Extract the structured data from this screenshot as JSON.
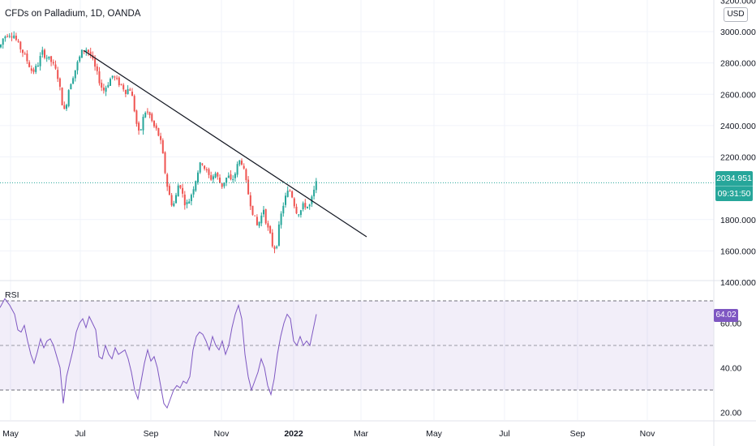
{
  "chart_data": {
    "type": "candlestick",
    "title": "CFDs on Palladium, 1D, OANDA",
    "currency": "USD",
    "last_price": "2034.951",
    "countdown": "09:31:50",
    "x_ticks": [
      "May",
      "Jul",
      "Sep",
      "Nov",
      "2022",
      "Mar",
      "May",
      "Jul",
      "Sep",
      "Nov"
    ],
    "price_ticks": [
      "3200.000",
      "3000.000",
      "2800.000",
      "2600.000",
      "2400.000",
      "2200.000",
      "1800.000",
      "1600.000",
      "1400.000"
    ],
    "ylim": [
      1400,
      3200
    ],
    "price_path": [
      [
        0,
        2900
      ],
      [
        4,
        2960
      ],
      [
        10,
        2990
      ],
      [
        17,
        2980
      ],
      [
        22,
        2920
      ],
      [
        27,
        2880
      ],
      [
        33,
        2820
      ],
      [
        40,
        2740
      ],
      [
        46,
        2780
      ],
      [
        52,
        2870
      ],
      [
        57,
        2840
      ],
      [
        63,
        2810
      ],
      [
        68,
        2760
      ],
      [
        72,
        2700
      ],
      [
        76,
        2560
      ],
      [
        80,
        2480
      ],
      [
        84,
        2620
      ],
      [
        88,
        2690
      ],
      [
        93,
        2760
      ],
      [
        97,
        2820
      ],
      [
        101,
        2870
      ],
      [
        106,
        2890
      ],
      [
        111,
        2860
      ],
      [
        115,
        2800
      ],
      [
        119,
        2740
      ],
      [
        123,
        2680
      ],
      [
        127,
        2620
      ],
      [
        131,
        2650
      ],
      [
        135,
        2690
      ],
      [
        139,
        2720
      ],
      [
        143,
        2690
      ],
      [
        147,
        2670
      ],
      [
        151,
        2650
      ],
      [
        155,
        2620
      ],
      [
        160,
        2640
      ],
      [
        164,
        2560
      ],
      [
        168,
        2420
      ],
      [
        172,
        2330
      ],
      [
        176,
        2440
      ],
      [
        180,
        2500
      ],
      [
        185,
        2460
      ],
      [
        189,
        2400
      ],
      [
        193,
        2370
      ],
      [
        197,
        2320
      ],
      [
        200,
        2240
      ],
      [
        203,
        2120
      ],
      [
        206,
        2020
      ],
      [
        209,
        1950
      ],
      [
        213,
        1880
      ],
      [
        217,
        1950
      ],
      [
        221,
        2050
      ],
      [
        225,
        1960
      ],
      [
        229,
        1890
      ],
      [
        233,
        1920
      ],
      [
        237,
        1980
      ],
      [
        241,
        2050
      ],
      [
        245,
        2130
      ],
      [
        249,
        2170
      ],
      [
        253,
        2120
      ],
      [
        257,
        2080
      ],
      [
        261,
        2060
      ],
      [
        265,
        2100
      ],
      [
        269,
        2060
      ],
      [
        273,
        2010
      ],
      [
        277,
        2050
      ],
      [
        281,
        2080
      ],
      [
        285,
        2040
      ],
      [
        289,
        2080
      ],
      [
        293,
        2150
      ],
      [
        297,
        2190
      ],
      [
        301,
        2100
      ],
      [
        305,
        1990
      ],
      [
        309,
        1900
      ],
      [
        313,
        1820
      ],
      [
        317,
        1760
      ],
      [
        321,
        1800
      ],
      [
        325,
        1870
      ],
      [
        329,
        1760
      ],
      [
        333,
        1700
      ],
      [
        337,
        1610
      ],
      [
        341,
        1640
      ],
      [
        345,
        1790
      ],
      [
        349,
        1890
      ],
      [
        353,
        1960
      ],
      [
        357,
        1990
      ],
      [
        361,
        1940
      ],
      [
        364,
        1870
      ],
      [
        367,
        1840
      ],
      [
        371,
        1860
      ],
      [
        375,
        1900
      ],
      [
        378,
        1880
      ],
      [
        382,
        1890
      ],
      [
        386,
        1960
      ],
      [
        390,
        2034
      ]
    ],
    "trendline": [
      [
        103,
        2880
      ],
      [
        452,
        1690
      ]
    ],
    "rsi_label": "RSI",
    "rsi_ticks": [
      "60.00",
      "40.00",
      "20.00"
    ],
    "rsi_value": "64.02",
    "rsi_ylim": [
      17,
      76
    ],
    "rsi_band": [
      30,
      70
    ],
    "rsi_mid": 50,
    "rsi_path": [
      [
        0,
        67
      ],
      [
        6,
        71
      ],
      [
        12,
        68
      ],
      [
        18,
        64
      ],
      [
        22,
        57
      ],
      [
        26,
        56
      ],
      [
        30,
        59
      ],
      [
        34,
        52
      ],
      [
        38,
        46
      ],
      [
        42,
        42
      ],
      [
        46,
        47
      ],
      [
        50,
        53
      ],
      [
        54,
        49
      ],
      [
        58,
        52
      ],
      [
        62,
        53
      ],
      [
        66,
        50
      ],
      [
        70,
        45
      ],
      [
        74,
        40
      ],
      [
        78,
        24
      ],
      [
        82,
        36
      ],
      [
        86,
        42
      ],
      [
        90,
        48
      ],
      [
        94,
        56
      ],
      [
        98,
        60
      ],
      [
        102,
        62
      ],
      [
        106,
        58
      ],
      [
        110,
        63
      ],
      [
        114,
        60
      ],
      [
        118,
        57
      ],
      [
        122,
        45
      ],
      [
        126,
        44
      ],
      [
        130,
        50
      ],
      [
        134,
        46
      ],
      [
        138,
        44
      ],
      [
        142,
        49
      ],
      [
        146,
        46
      ],
      [
        150,
        47
      ],
      [
        154,
        48
      ],
      [
        158,
        44
      ],
      [
        162,
        38
      ],
      [
        166,
        30
      ],
      [
        170,
        26
      ],
      [
        174,
        34
      ],
      [
        178,
        42
      ],
      [
        182,
        48
      ],
      [
        186,
        43
      ],
      [
        190,
        45
      ],
      [
        194,
        40
      ],
      [
        198,
        32
      ],
      [
        202,
        24
      ],
      [
        206,
        22
      ],
      [
        210,
        26
      ],
      [
        214,
        30
      ],
      [
        218,
        32
      ],
      [
        222,
        31
      ],
      [
        226,
        34
      ],
      [
        230,
        33
      ],
      [
        234,
        36
      ],
      [
        238,
        48
      ],
      [
        242,
        54
      ],
      [
        246,
        56
      ],
      [
        250,
        55
      ],
      [
        254,
        52
      ],
      [
        258,
        48
      ],
      [
        262,
        54
      ],
      [
        266,
        50
      ],
      [
        270,
        48
      ],
      [
        274,
        52
      ],
      [
        278,
        46
      ],
      [
        282,
        50
      ],
      [
        286,
        58
      ],
      [
        290,
        64
      ],
      [
        294,
        68
      ],
      [
        298,
        62
      ],
      [
        302,
        46
      ],
      [
        306,
        36
      ],
      [
        310,
        30
      ],
      [
        314,
        34
      ],
      [
        318,
        38
      ],
      [
        322,
        44
      ],
      [
        326,
        40
      ],
      [
        330,
        32
      ],
      [
        334,
        28
      ],
      [
        338,
        35
      ],
      [
        342,
        46
      ],
      [
        346,
        54
      ],
      [
        350,
        60
      ],
      [
        354,
        64
      ],
      [
        358,
        62
      ],
      [
        362,
        52
      ],
      [
        366,
        50
      ],
      [
        370,
        54
      ],
      [
        374,
        50
      ],
      [
        378,
        52
      ],
      [
        382,
        50
      ],
      [
        386,
        57
      ],
      [
        390,
        64
      ]
    ]
  }
}
